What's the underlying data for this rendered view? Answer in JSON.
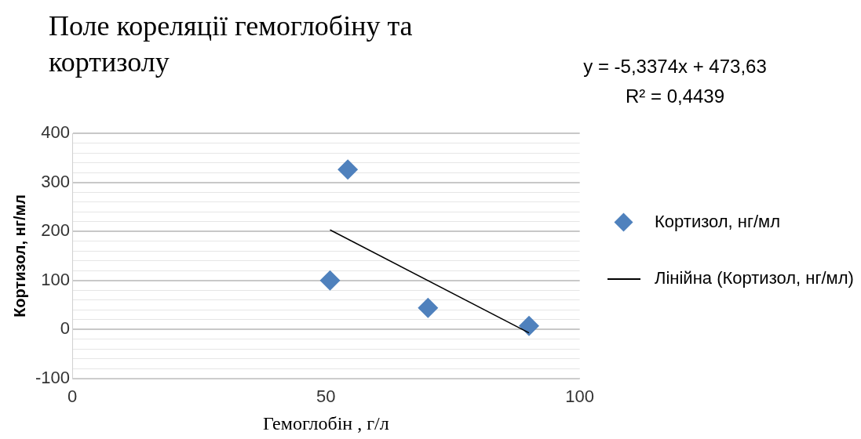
{
  "chart_data": {
    "type": "scatter",
    "title": "Поле кореляції гемоглобіну та кортизолу",
    "xlabel": "Гемоглобін , г/л",
    "ylabel": "Кортизол, нг/мл",
    "x": [
      54.3,
      50.8,
      70.1,
      90
    ],
    "series": [
      {
        "name": "Кортизол, нг/мл",
        "color": "#4f81bd",
        "values": [
          326,
          100,
          44,
          7
        ],
        "marker": "diamond"
      },
      {
        "name": "Лінійна (Кортизол, нг/мл)",
        "type": "line",
        "color": "#000000",
        "x": [
          50.8,
          90
        ],
        "values": [
          203,
          -7
        ],
        "marker": "none"
      }
    ],
    "xlim": [
      0,
      100
    ],
    "xticks": [
      0,
      50,
      100
    ],
    "ylim": [
      -100,
      400
    ],
    "yticks": [
      -100,
      {
        "value": -80,
        "label": null
      },
      {
        "value": -60,
        "label": null
      },
      {
        "value": -40,
        "label": null
      },
      {
        "value": -20,
        "label": null
      },
      0,
      {
        "value": 20,
        "label": null
      },
      {
        "value": 40,
        "label": null
      },
      {
        "value": 60,
        "label": null
      },
      {
        "value": 80,
        "label": null
      },
      100,
      {
        "value": 120,
        "label": null
      },
      {
        "value": 140,
        "label": null
      },
      {
        "value": 160,
        "label": null
      },
      {
        "value": 180,
        "label": null
      },
      200,
      {
        "value": 220,
        "label": null
      },
      {
        "value": 240,
        "label": null
      },
      {
        "value": 260,
        "label": null
      },
      {
        "value": 280,
        "label": null
      },
      300,
      {
        "value": 320,
        "label": null
      },
      {
        "value": 340,
        "label": null
      },
      {
        "value": 360,
        "label": null
      },
      {
        "value": 380,
        "label": null
      },
      400
    ],
    "grid": "y",
    "legend": "right",
    "annotations": [
      "y = -5,3374x + 473,63",
      "R² = 0,4439"
    ]
  }
}
